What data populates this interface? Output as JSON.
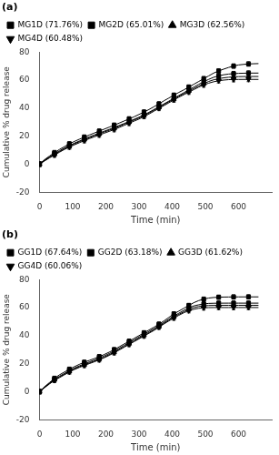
{
  "chart_data": [
    {
      "type": "line",
      "title": "(a)",
      "x": [
        0,
        15,
        30,
        45,
        60,
        75,
        90,
        105,
        120,
        135,
        150,
        165,
        180,
        195,
        210,
        225,
        240,
        255,
        270,
        285,
        300,
        315,
        330,
        345,
        360,
        375,
        390,
        405,
        420,
        435,
        450,
        465,
        480,
        495,
        510,
        525,
        540,
        555,
        570,
        585,
        600,
        615,
        630,
        645,
        660
      ],
      "xlabel": "Time (min)",
      "ylabel": "Cumulative % drug release",
      "xlim": [
        0,
        700
      ],
      "xticks": [
        0,
        100,
        200,
        300,
        400,
        500,
        600
      ],
      "ylim": [
        -20,
        80
      ],
      "yticks": [
        -20,
        0,
        20,
        40,
        60,
        80
      ],
      "grid": false,
      "legend": "upper left",
      "series": [
        {
          "name": "MG1D (71.76%)",
          "color": "#000000",
          "marker": "square",
          "values": [
            0,
            3.2,
            5.8,
            8.2,
            10.5,
            12.5,
            14.5,
            16.2,
            17.8,
            19.3,
            20.8,
            22.2,
            23.6,
            25.0,
            26.4,
            27.8,
            29.3,
            30.8,
            32.3,
            33.8,
            35.5,
            37.2,
            39.0,
            41.0,
            43.0,
            45.2,
            47.2,
            49.2,
            51.2,
            53.0,
            55.0,
            57.0,
            59.0,
            61.0,
            63.0,
            65.0,
            66.5,
            67.8,
            69.0,
            70.0,
            70.8,
            71.2,
            71.5,
            71.65,
            71.76
          ],
          "errors": [
            1.62,
            null,
            null,
            1.62,
            null,
            null,
            1.62,
            null,
            null,
            1.62,
            null,
            null,
            1.62,
            null,
            null,
            1.62,
            null,
            null,
            1.62,
            null,
            null,
            1.62,
            null,
            null,
            1.62,
            null,
            null,
            1.62,
            null,
            null,
            1.62,
            null,
            null,
            1.62,
            null,
            null,
            1.62,
            null,
            null,
            1.62,
            null,
            null,
            1.62,
            null,
            null
          ]
        },
        {
          "name": "MG2D (65.01%)",
          "color": "#000000",
          "marker": "square",
          "values": [
            0,
            2.8,
            5.2,
            7.5,
            9.5,
            11.5,
            13.2,
            15.0,
            16.5,
            18.0,
            19.4,
            20.8,
            22.2,
            23.5,
            24.8,
            26.2,
            27.6,
            29.0,
            30.5,
            32.0,
            33.5,
            35.2,
            37.0,
            39.0,
            41.0,
            43.0,
            45.0,
            47.0,
            49.0,
            51.0,
            53.0,
            55.0,
            57.0,
            58.8,
            60.5,
            62.0,
            63.0,
            63.8,
            64.3,
            64.6,
            64.8,
            64.9,
            65.0,
            65.0,
            65.01
          ],
          "errors": [
            1.62,
            null,
            null,
            1.62,
            null,
            null,
            1.62,
            null,
            null,
            1.62,
            null,
            null,
            1.62,
            null,
            null,
            1.62,
            null,
            null,
            1.62,
            null,
            null,
            1.62,
            null,
            null,
            1.62,
            null,
            null,
            1.62,
            null,
            null,
            1.62,
            null,
            null,
            1.62,
            null,
            null,
            1.62,
            null,
            null,
            1.62,
            null,
            null,
            1.62,
            null,
            null
          ]
        },
        {
          "name": "MG3D (62.56%)",
          "color": "#000000",
          "marker": "triangle-up",
          "values": [
            0,
            2.5,
            4.8,
            7.0,
            9.0,
            11.0,
            12.8,
            14.5,
            16.0,
            17.5,
            18.9,
            20.3,
            21.6,
            22.9,
            24.2,
            25.5,
            27.0,
            28.5,
            30.0,
            31.5,
            33.0,
            34.8,
            36.5,
            38.5,
            40.5,
            42.5,
            44.5,
            46.5,
            48.5,
            50.3,
            52.2,
            54.0,
            55.8,
            57.5,
            59.0,
            60.2,
            61.0,
            61.6,
            62.0,
            62.3,
            62.45,
            62.52,
            62.55,
            62.56,
            62.56
          ],
          "errors": [
            1.62,
            null,
            null,
            1.62,
            null,
            null,
            1.62,
            null,
            null,
            1.62,
            null,
            null,
            1.62,
            null,
            null,
            1.62,
            null,
            null,
            1.62,
            null,
            null,
            1.62,
            null,
            null,
            1.62,
            null,
            null,
            1.62,
            null,
            null,
            1.62,
            null,
            null,
            1.62,
            null,
            null,
            1.62,
            null,
            null,
            1.62,
            null,
            null,
            1.62,
            null,
            null
          ]
        },
        {
          "name": "MG4D (60.48%)",
          "color": "#000000",
          "marker": "triangle-down",
          "values": [
            0,
            2.3,
            4.5,
            6.5,
            8.5,
            10.5,
            12.2,
            13.8,
            15.3,
            16.8,
            18.2,
            19.5,
            20.8,
            22.1,
            23.4,
            24.7,
            26.2,
            27.7,
            29.2,
            30.7,
            32.2,
            34.0,
            35.8,
            37.8,
            39.8,
            41.8,
            43.8,
            45.8,
            47.8,
            49.6,
            51.4,
            53.2,
            55.0,
            56.5,
            57.8,
            58.8,
            59.5,
            60.0,
            60.3,
            60.4,
            60.46,
            60.47,
            60.48,
            60.48,
            60.48
          ],
          "errors": [
            1.62,
            null,
            null,
            1.62,
            null,
            null,
            1.62,
            null,
            null,
            1.62,
            null,
            null,
            1.62,
            null,
            null,
            1.62,
            null,
            null,
            1.62,
            null,
            null,
            1.62,
            null,
            null,
            1.62,
            null,
            null,
            1.62,
            null,
            null,
            1.62,
            null,
            null,
            1.62,
            null,
            null,
            1.62,
            null,
            null,
            1.62,
            null,
            null,
            1.62,
            null,
            null
          ]
        }
      ]
    },
    {
      "type": "line",
      "title": "(b)",
      "x": [
        0,
        15,
        30,
        45,
        60,
        75,
        90,
        105,
        120,
        135,
        150,
        165,
        180,
        195,
        210,
        225,
        240,
        255,
        270,
        285,
        300,
        315,
        330,
        345,
        360,
        375,
        390,
        405,
        420,
        435,
        450,
        465,
        480,
        495,
        510,
        525,
        540,
        555,
        570,
        585,
        600,
        615,
        630,
        645,
        660
      ],
      "xlabel": "Time (min)",
      "ylabel": "Cumulative % drug release",
      "xlim": [
        0,
        700
      ],
      "xticks": [
        0,
        100,
        200,
        300,
        400,
        500,
        600
      ],
      "ylim": [
        -20,
        80
      ],
      "yticks": [
        -20,
        0,
        20,
        40,
        60,
        80
      ],
      "grid": false,
      "legend": "upper left",
      "series": [
        {
          "name": "GG1D (67.64%)",
          "color": "#000000",
          "marker": "square",
          "values": [
            0,
            3.5,
            6.5,
            9.5,
            12.0,
            14.0,
            16.0,
            17.8,
            19.5,
            21.0,
            22.3,
            23.6,
            25.0,
            26.5,
            28.2,
            30.0,
            32.0,
            34.0,
            36.0,
            38.0,
            40.0,
            42.0,
            44.0,
            46.0,
            48.2,
            50.5,
            53.0,
            55.5,
            57.5,
            59.5,
            61.5,
            63.5,
            65.0,
            66.0,
            66.8,
            67.2,
            67.4,
            67.5,
            67.55,
            67.6,
            67.62,
            67.63,
            67.64,
            67.64,
            67.64
          ],
          "errors": [
            1.5666666666666667,
            null,
            null,
            1.5666666666666667,
            null,
            null,
            1.5666666666666667,
            null,
            null,
            1.5666666666666667,
            null,
            null,
            1.5666666666666667,
            null,
            null,
            1.5666666666666667,
            null,
            null,
            1.5666666666666667,
            null,
            null,
            1.5666666666666667,
            null,
            null,
            1.5666666666666667,
            null,
            null,
            1.5666666666666667,
            null,
            null,
            1.5666666666666667,
            null,
            null,
            1.5666666666666667,
            null,
            null,
            1.5666666666666667,
            null,
            null,
            1.5666666666666667,
            null,
            null,
            1.5666666666666667,
            null,
            null
          ]
        },
        {
          "name": "GG2D (63.18%)",
          "color": "#000000",
          "marker": "square",
          "values": [
            0,
            3.2,
            6.0,
            8.8,
            11.0,
            13.0,
            15.0,
            16.8,
            18.4,
            19.8,
            21.2,
            22.5,
            24.0,
            25.5,
            27.2,
            29.0,
            31.0,
            33.0,
            35.0,
            37.0,
            39.0,
            41.0,
            43.0,
            45.0,
            47.2,
            49.5,
            51.8,
            54.0,
            56.0,
            58.0,
            59.8,
            61.2,
            62.0,
            62.6,
            63.0,
            63.1,
            63.15,
            63.17,
            63.18,
            63.18,
            63.18,
            63.18,
            63.18,
            63.18,
            63.18
          ],
          "errors": [
            1.5666666666666667,
            null,
            null,
            1.5666666666666667,
            null,
            null,
            1.5666666666666667,
            null,
            null,
            1.5666666666666667,
            null,
            null,
            1.5666666666666667,
            null,
            null,
            1.5666666666666667,
            null,
            null,
            1.5666666666666667,
            null,
            null,
            1.5666666666666667,
            null,
            null,
            1.5666666666666667,
            null,
            null,
            1.5666666666666667,
            null,
            null,
            1.5666666666666667,
            null,
            null,
            1.5666666666666667,
            null,
            null,
            1.5666666666666667,
            null,
            null,
            1.5666666666666667,
            null,
            null,
            1.5666666666666667,
            null,
            null
          ]
        },
        {
          "name": "GG3D (61.62%)",
          "color": "#000000",
          "marker": "triangle-up",
          "values": [
            0,
            3.0,
            5.8,
            8.5,
            10.5,
            12.5,
            14.5,
            16.2,
            17.8,
            19.2,
            20.5,
            21.8,
            23.2,
            24.7,
            26.4,
            28.2,
            30.2,
            32.2,
            34.2,
            36.2,
            38.2,
            40.2,
            42.2,
            44.2,
            46.4,
            48.8,
            51.0,
            53.2,
            55.2,
            57.0,
            58.8,
            60.0,
            60.8,
            61.3,
            61.5,
            61.57,
            61.6,
            61.62,
            61.62,
            61.62,
            61.62,
            61.62,
            61.62,
            61.62,
            61.62
          ],
          "errors": [
            1.5666666666666667,
            null,
            null,
            1.5666666666666667,
            null,
            null,
            1.5666666666666667,
            null,
            null,
            1.5666666666666667,
            null,
            null,
            1.5666666666666667,
            null,
            null,
            1.5666666666666667,
            null,
            null,
            1.5666666666666667,
            null,
            null,
            1.5666666666666667,
            null,
            null,
            1.5666666666666667,
            null,
            null,
            1.5666666666666667,
            null,
            null,
            1.5666666666666667,
            null,
            null,
            1.5666666666666667,
            null,
            null,
            1.5666666666666667,
            null,
            null,
            1.5666666666666667,
            null,
            null,
            1.5666666666666667,
            null,
            null
          ]
        },
        {
          "name": "GG4D (60.06%)",
          "color": "#000000",
          "marker": "triangle-down",
          "values": [
            0,
            2.8,
            5.5,
            8.0,
            10.0,
            12.0,
            14.0,
            15.8,
            17.3,
            18.7,
            20.0,
            21.3,
            22.7,
            24.2,
            25.9,
            27.7,
            29.7,
            31.7,
            33.7,
            35.7,
            37.7,
            39.7,
            41.7,
            43.7,
            46.0,
            48.3,
            50.5,
            52.5,
            54.5,
            56.3,
            57.8,
            58.8,
            59.5,
            59.8,
            60.0,
            60.04,
            60.06,
            60.06,
            60.06,
            60.06,
            60.06,
            60.06,
            60.06,
            60.06,
            60.06
          ],
          "errors": [
            1.5666666666666667,
            null,
            null,
            1.5666666666666667,
            null,
            null,
            1.5666666666666667,
            null,
            null,
            1.5666666666666667,
            null,
            null,
            1.5666666666666667,
            null,
            null,
            1.5666666666666667,
            null,
            null,
            1.5666666666666667,
            null,
            null,
            1.5666666666666667,
            null,
            null,
            1.5666666666666667,
            null,
            null,
            1.5666666666666667,
            null,
            null,
            1.5666666666666667,
            null,
            null,
            1.5666666666666667,
            null,
            null,
            1.5666666666666667,
            null,
            null,
            1.5666666666666667,
            null,
            null,
            1.5666666666666667,
            null,
            null
          ]
        }
      ]
    }
  ]
}
